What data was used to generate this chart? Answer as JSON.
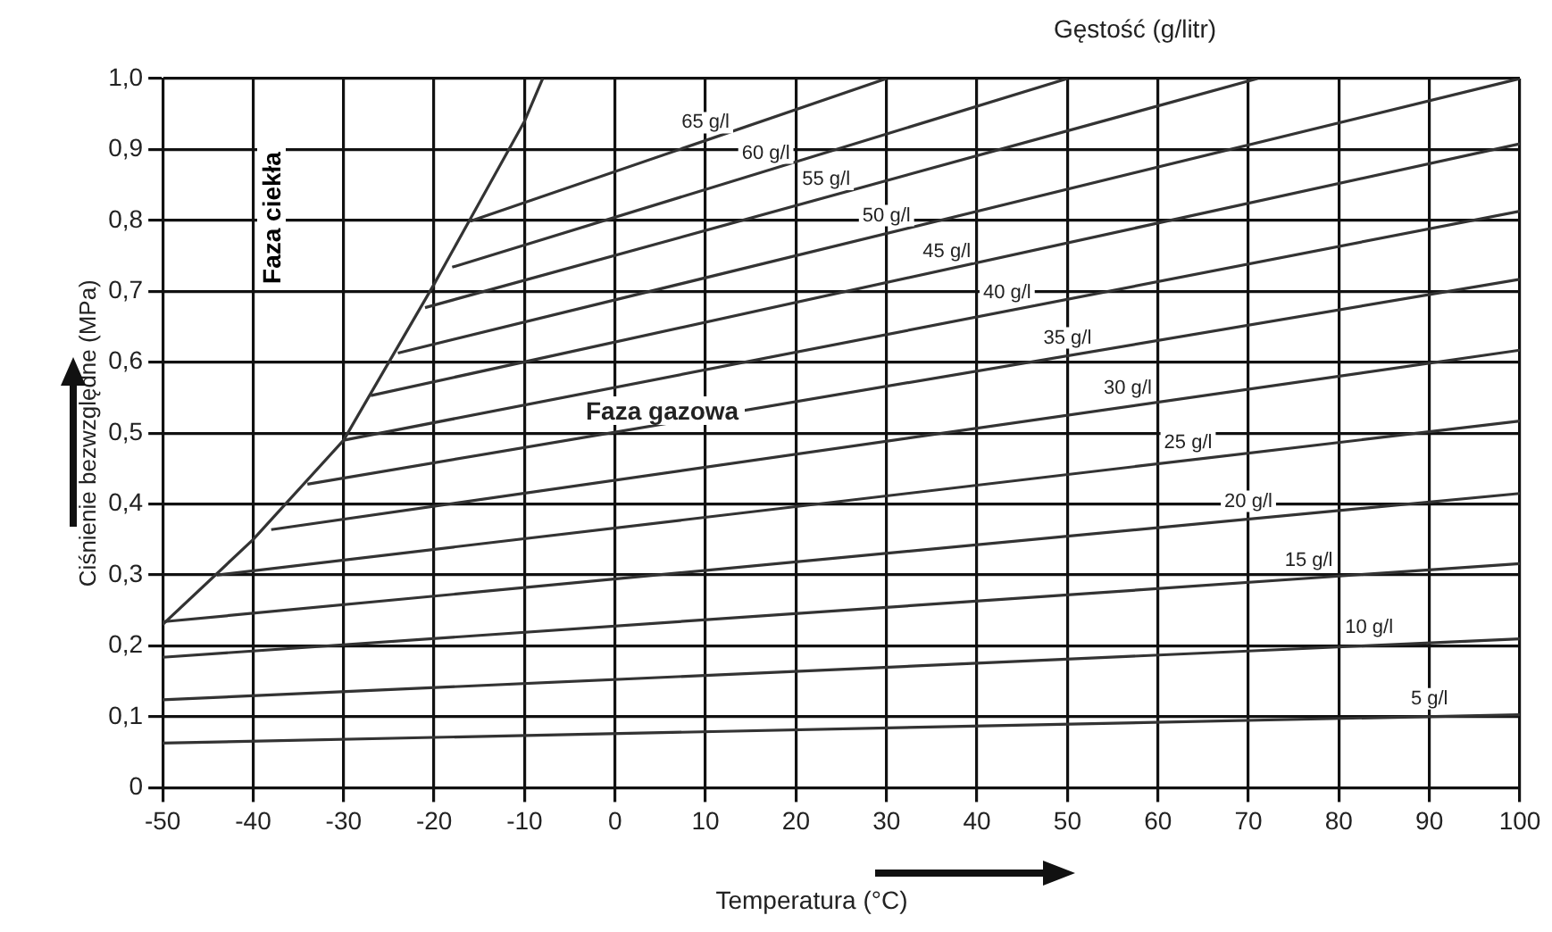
{
  "chart_data": {
    "type": "line",
    "xlabel": "Temperatura (°C)",
    "ylabel": "Ciśnienie bezwzględne (MPa)",
    "annotations": [
      "Gęstość (g/litr)",
      "Faza ciekła",
      "Faza gazowa"
    ],
    "xlim": [
      -50,
      100
    ],
    "xticks": [
      -50,
      -40,
      -30,
      -20,
      -10,
      0,
      10,
      20,
      30,
      40,
      50,
      60,
      70,
      80,
      90,
      100
    ],
    "ylim": [
      0,
      1.0
    ],
    "yticks": [
      0,
      {
        "value": 0.1,
        "label": "0,1"
      },
      {
        "value": 0.2,
        "label": "0,2"
      },
      {
        "value": 0.3,
        "label": "0,3"
      },
      {
        "value": 0.4,
        "label": "0,4"
      },
      {
        "value": 0.5,
        "label": "0,5"
      },
      {
        "value": 0.6,
        "label": "0,6"
      },
      {
        "value": 0.7,
        "label": "0,7"
      },
      {
        "value": 0.8,
        "label": "0,8"
      },
      {
        "value": 0.9,
        "label": "0,9"
      },
      {
        "value": 1.0,
        "label": "1,0"
      }
    ],
    "grid": true,
    "legend": false,
    "marker": "none",
    "line_style": "solid",
    "series": [
      {
        "color": "#333333",
        "x": [
          -50,
          -40,
          -30,
          -20,
          -10,
          -8
        ],
        "values": [
          0.23,
          0.35,
          0.49,
          0.71,
          0.94,
          1.0
        ]
      },
      {
        "name": "5 g/l",
        "color": "#333333",
        "x": [
          -50,
          100
        ],
        "values": [
          0.063,
          0.103
        ]
      },
      {
        "name": "10 g/l",
        "color": "#333333",
        "x": [
          -50,
          100
        ],
        "values": [
          0.124,
          0.21
        ]
      },
      {
        "name": "15 g/l",
        "color": "#333333",
        "x": [
          -50,
          100
        ],
        "values": [
          0.184,
          0.316
        ]
      },
      {
        "name": "20 g/l",
        "color": "#333333",
        "x": [
          -50,
          100
        ],
        "values": [
          0.234,
          0.415
        ]
      },
      {
        "name": "25 g/l",
        "color": "#333333",
        "x": [
          -44,
          100
        ],
        "values": [
          0.3,
          0.517
        ]
      },
      {
        "name": "30 g/l",
        "color": "#333333",
        "x": [
          -38,
          100
        ],
        "values": [
          0.364,
          0.617
        ]
      },
      {
        "name": "35 g/l",
        "color": "#333333",
        "x": [
          -34,
          100
        ],
        "values": [
          0.428,
          0.717
        ]
      },
      {
        "name": "40 g/l",
        "color": "#333333",
        "x": [
          -30,
          100
        ],
        "values": [
          0.49,
          0.813
        ]
      },
      {
        "name": "45 g/l",
        "color": "#333333",
        "x": [
          -27,
          100
        ],
        "values": [
          0.553,
          0.908
        ]
      },
      {
        "name": "50 g/l",
        "color": "#333333",
        "x": [
          -24,
          100
        ],
        "values": [
          0.613,
          1.0
        ]
      },
      {
        "name": "55 g/l",
        "color": "#333333",
        "x": [
          -21,
          71
        ],
        "values": [
          0.677,
          1.0
        ]
      },
      {
        "name": "60 g/l",
        "color": "#333333",
        "x": [
          -18,
          50
        ],
        "values": [
          0.734,
          1.0
        ]
      },
      {
        "name": "65 g/l",
        "color": "#333333",
        "x": [
          -16,
          30
        ],
        "values": [
          0.799,
          1.0
        ]
      }
    ]
  }
}
